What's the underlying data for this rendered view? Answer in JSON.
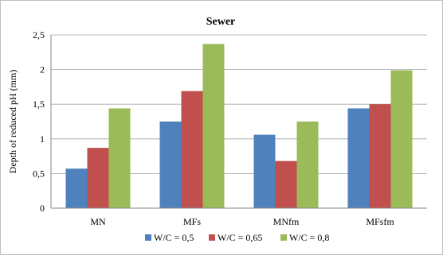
{
  "chart_data": {
    "type": "bar",
    "title": "Sewer",
    "xlabel": "",
    "ylabel": "Depth of reduced pH (mm)",
    "categories": [
      "MN",
      "MFs",
      "MNfm",
      "MFsfm"
    ],
    "series": [
      {
        "name": "W/C = 0,5",
        "color": "#4f81bd",
        "values": [
          0.57,
          1.25,
          1.06,
          1.44
        ]
      },
      {
        "name": "W/C = 0,65",
        "color": "#c0504d",
        "values": [
          0.87,
          1.69,
          0.68,
          1.5
        ]
      },
      {
        "name": "W/C = 0,8",
        "color": "#9bbb59",
        "values": [
          1.44,
          2.37,
          1.25,
          1.99
        ]
      }
    ],
    "ylim": [
      0,
      2.5
    ],
    "yticks": [
      0,
      0.5,
      1,
      1.5,
      2,
      2.5
    ],
    "ytick_labels": [
      "0",
      "0,5",
      "1",
      "1,5",
      "2",
      "2,5"
    ],
    "grid": true,
    "legend_position": "bottom"
  }
}
